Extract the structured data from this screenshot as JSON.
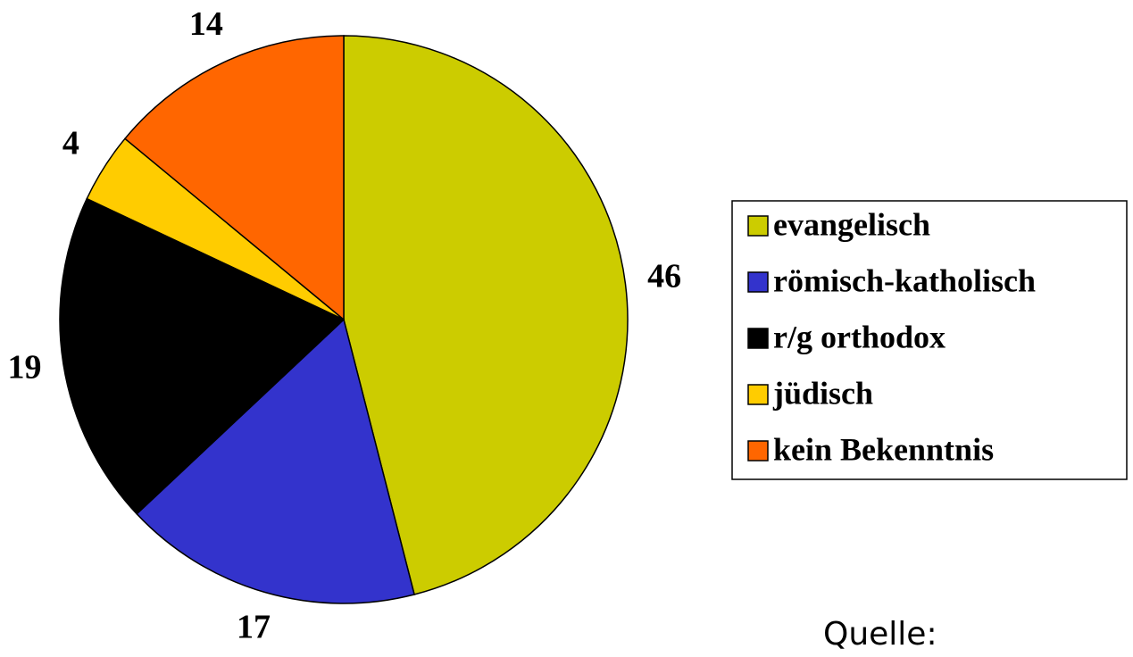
{
  "chart_data": {
    "type": "pie",
    "categories": [
      "evangelisch",
      "römisch-katholisch",
      "r/g orthodox",
      "jüdisch",
      "kein Bekenntnis"
    ],
    "values": [
      46,
      17,
      19,
      4,
      14
    ],
    "colors": [
      "#cccc00",
      "#3333cc",
      "#000000",
      "#ffcc00",
      "#ff6600"
    ],
    "legend": "right",
    "note": "Quelle:"
  }
}
